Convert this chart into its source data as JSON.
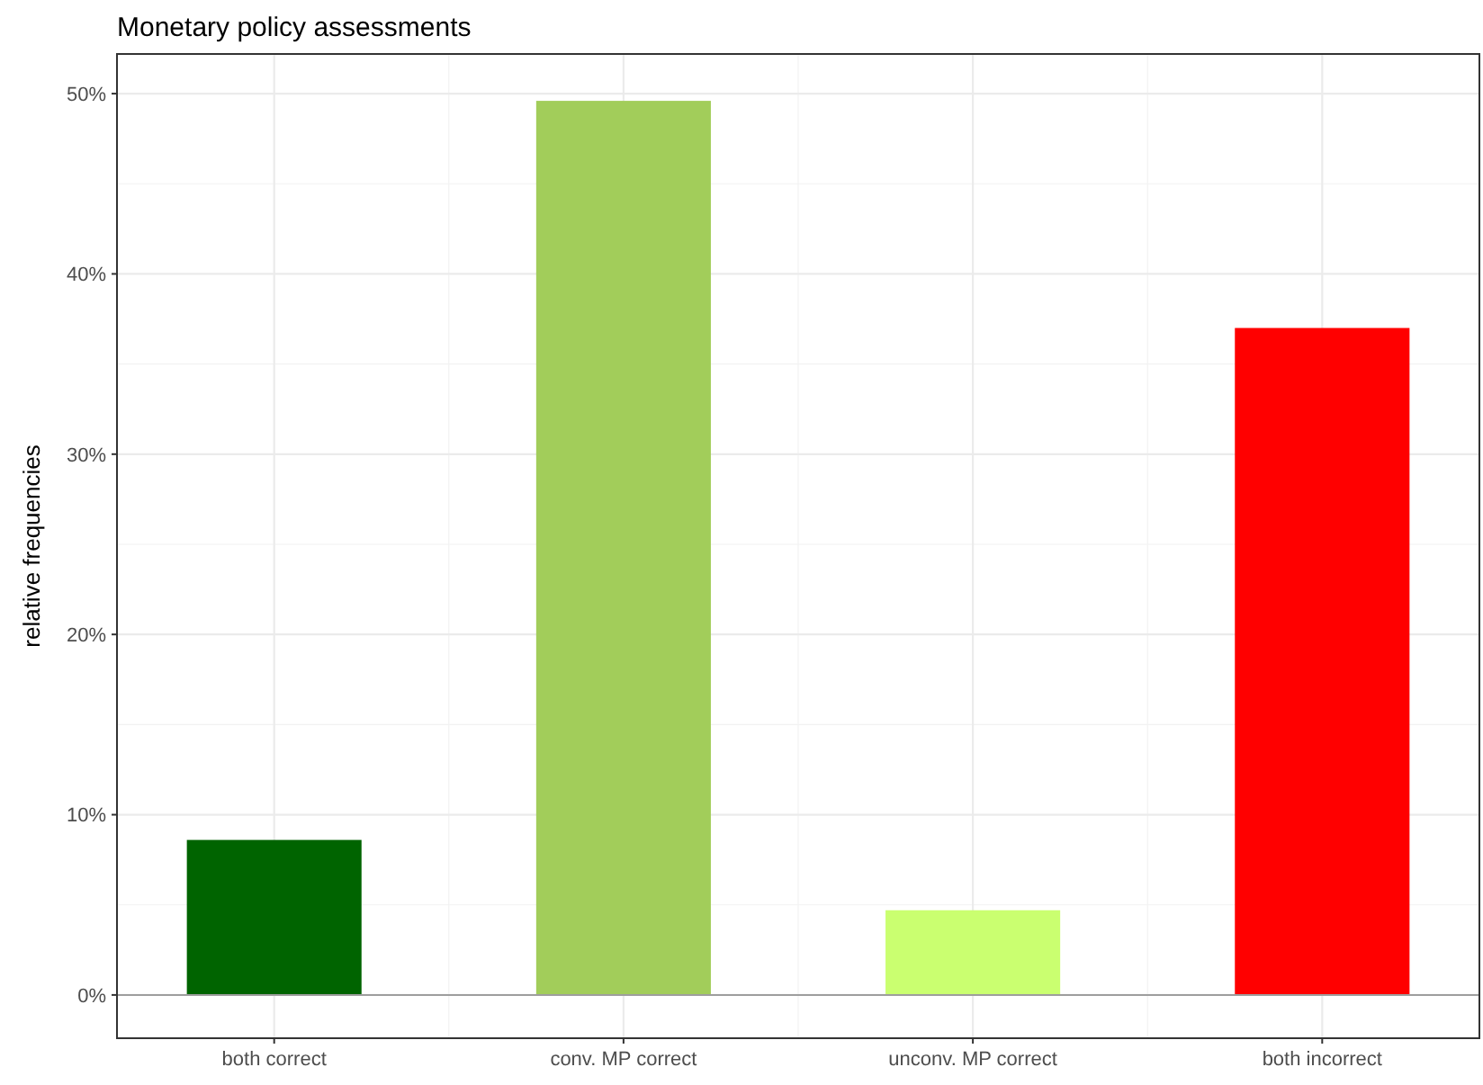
{
  "chart_data": {
    "type": "bar",
    "title": "Monetary policy assessments",
    "ylabel": "relative frequencies",
    "categories": [
      "both correct",
      "conv. MP correct",
      "unconv. MP correct",
      "both incorrect"
    ],
    "values": [
      8.6,
      49.6,
      4.7,
      37.0
    ],
    "colors": [
      "#006400",
      "#a2cd5a",
      "#caff70",
      "#ff0000"
    ],
    "ylim": [
      -2.4,
      52.2
    ],
    "yticks": [
      {
        "value": 0,
        "label": "0%"
      },
      {
        "value": 10,
        "label": "10%"
      },
      {
        "value": 20,
        "label": "20%"
      },
      {
        "value": 30,
        "label": "30%"
      },
      {
        "value": 40,
        "label": "40%"
      },
      {
        "value": 50,
        "label": "50%"
      }
    ],
    "ref_lines": [
      {
        "axis": "y",
        "value": 0,
        "color": "#9e9e9e"
      }
    ],
    "grid": true
  }
}
